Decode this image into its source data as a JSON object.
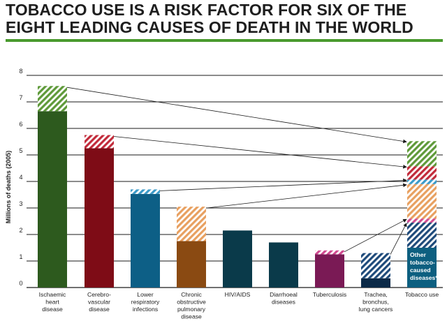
{
  "title_line1": "TOBACCO USE IS A RISK FACTOR FOR SIX OF THE",
  "title_line2": "EIGHT LEADING CAUSES OF DEATH IN THE WORLD",
  "chart_data": {
    "type": "bar",
    "ylabel": "Millions of deaths (2005)",
    "ylim": [
      0,
      8
    ],
    "yticks": [
      0,
      1,
      2,
      3,
      4,
      5,
      6,
      7,
      8
    ],
    "categories": [
      {
        "key": "ihd",
        "lines": [
          "Ischaemic",
          "heart",
          "disease"
        ],
        "total": 7.6,
        "tobacco": 0.95,
        "color": "#2d5a1e",
        "tcolor": "#5f9a3a"
      },
      {
        "key": "cvd",
        "lines": [
          "Cerebro-",
          "vascular",
          "disease"
        ],
        "total": 5.75,
        "tobacco": 0.5,
        "color": "#7e0c16",
        "tcolor": "#c22a3a"
      },
      {
        "key": "lri",
        "lines": [
          "Lower",
          "respiratory",
          "infections"
        ],
        "total": 3.7,
        "tobacco": 0.17,
        "color": "#0d5f86",
        "tcolor": "#3a9ac8"
      },
      {
        "key": "copd",
        "lines": [
          "Chronic",
          "obstructive",
          "pulmonary",
          "disease"
        ],
        "total": 3.05,
        "tobacco": 1.3,
        "color": "#8a4a12",
        "tcolor": "#e8a060"
      },
      {
        "key": "hiv",
        "lines": [
          "HIV/AIDS"
        ],
        "total": 2.15,
        "tobacco": 0,
        "color": "#0a3a4a",
        "tcolor": "#0a3a4a"
      },
      {
        "key": "diar",
        "lines": [
          "Diarrhoeal",
          "diseases"
        ],
        "total": 1.7,
        "tobacco": 0,
        "color": "#0a3a4a",
        "tcolor": "#0a3a4a"
      },
      {
        "key": "tb",
        "lines": [
          "Tuberculosis"
        ],
        "total": 1.4,
        "tobacco": 0.15,
        "color": "#7a1a55",
        "tcolor": "#d04a90"
      },
      {
        "key": "lung",
        "lines": [
          "Trachea,",
          "bronchus,",
          "lung cancers"
        ],
        "total": 1.3,
        "tobacco": 0.95,
        "color": "#0c2a48",
        "tcolor": "#1e4a7a"
      }
    ],
    "stacked": {
      "key": "tob",
      "lines": [
        "Tobacco use"
      ],
      "annotation": [
        "Other",
        "tobacco-",
        "caused",
        "diseases*"
      ],
      "base_value": 1.5,
      "base_color": "#0d5f80",
      "segments": [
        {
          "from": "lung",
          "value": 0.95,
          "color": "#1e4a7a"
        },
        {
          "from": "tb",
          "value": 0.15,
          "color": "#d04a90"
        },
        {
          "from": "copd",
          "value": 1.3,
          "color": "#e8a060"
        },
        {
          "from": "lri",
          "value": 0.17,
          "color": "#3a9ac8"
        },
        {
          "from": "cvd",
          "value": 0.5,
          "color": "#c22a3a"
        },
        {
          "from": "ihd",
          "value": 0.95,
          "color": "#5f9a3a"
        }
      ]
    }
  }
}
